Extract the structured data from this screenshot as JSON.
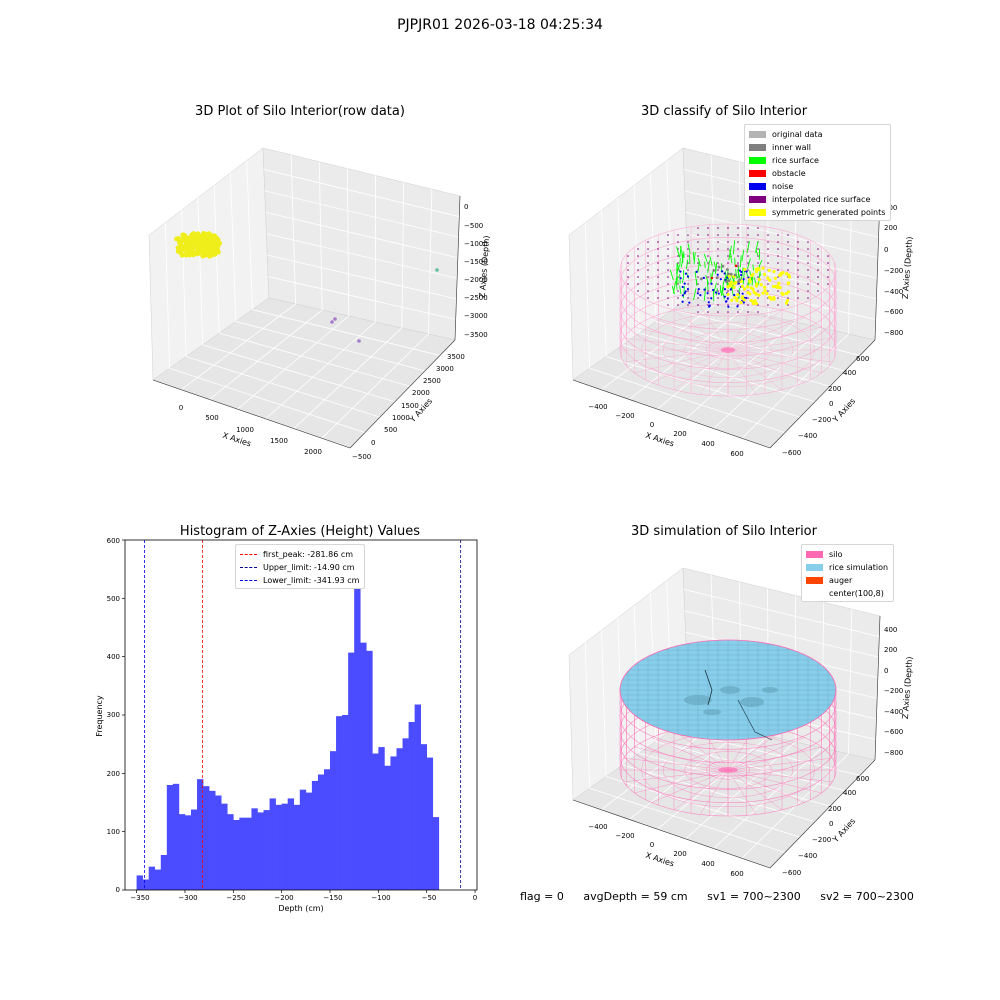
{
  "page": {
    "title": "PJPJR01 2026-03-18 04:25:34"
  },
  "footer": {
    "flag": "flag = 0",
    "avg_depth": "avgDepth = 59 cm",
    "sv1": "sv1 = 700~2300",
    "sv2": "sv2 = 700~2300"
  },
  "chart_data": [
    {
      "type": "scatter",
      "subtype": "3d",
      "title": "3D Plot of Silo Interior(row data)",
      "xlabel": "X Axies",
      "ylabel": "Y Axies",
      "zlabel": "Z Axies (Depth)",
      "x_ticks": [
        "0",
        "500",
        "1000",
        "1500",
        "2000"
      ],
      "y_ticks": [
        "−500",
        "0",
        "500",
        "1000",
        "1500",
        "2000",
        "2500",
        "3000",
        "3500"
      ],
      "z_ticks": [
        "0",
        "−500",
        "−1000",
        "−1500",
        "−2000",
        "−2500",
        "−3000",
        "−3500"
      ],
      "series": [
        {
          "color": "#f0ee1a",
          "description_points": "dense cluster near x=0, high y, z near 0"
        },
        {
          "color": "#a77ccc",
          "points": [
            [
              1700,
              -300,
              -3200
            ],
            [
              1900,
              -200,
              -3350
            ],
            [
              2100,
              -300,
              -3400
            ]
          ]
        },
        {
          "color": "#5dbf9d",
          "points": [
            [
              2200,
              3000,
              -1800
            ]
          ]
        }
      ],
      "grid": true
    },
    {
      "type": "scatter",
      "subtype": "3d",
      "title": "3D classify of Silo Interior",
      "xlabel": "X Axies",
      "ylabel": "Y Axies",
      "zlabel": "Z Axies (Depth)",
      "x_ticks": [
        "−400",
        "−200",
        "0",
        "200",
        "400",
        "600"
      ],
      "y_ticks": [
        "−600",
        "−400",
        "−200",
        "0",
        "200",
        "400",
        "600"
      ],
      "z_ticks": [
        "400",
        "200",
        "0",
        "−200",
        "−400",
        "−600",
        "−800"
      ],
      "legend": [
        {
          "label": "original data",
          "color": "#b3b3b3"
        },
        {
          "label": "inner wall",
          "color": "#7f7f7f"
        },
        {
          "label": "rice surface",
          "color": "#00ff00"
        },
        {
          "label": "obstacle",
          "color": "#ff0000"
        },
        {
          "label": "noise",
          "color": "#0000ee"
        },
        {
          "label": "interpolated rice surface",
          "color": "#800080"
        },
        {
          "label": "symmetric generated points",
          "color": "#ffff00"
        }
      ],
      "legend_position": "top-right",
      "grid": true
    },
    {
      "type": "bar",
      "subtype": "histogram",
      "title": "Histogram of Z-Axies (Height) Values",
      "xlabel": "Depth (cm)",
      "ylabel": "Frequency",
      "xlim": [
        -362,
        2
      ],
      "ylim": [
        0,
        600
      ],
      "x_ticks": [
        "−350",
        "−300",
        "−250",
        "−200",
        "−150",
        "−100",
        "−50",
        "0"
      ],
      "y_ticks": [
        "0",
        "100",
        "200",
        "300",
        "400",
        "500",
        "600"
      ],
      "bar_color": "#4b4bff",
      "bin_start": -350,
      "bin_width": 6.25,
      "values": [
        25,
        18,
        40,
        35,
        60,
        180,
        182,
        130,
        128,
        138,
        190,
        178,
        170,
        162,
        148,
        130,
        120,
        124,
        124,
        140,
        133,
        137,
        157,
        146,
        148,
        157,
        146,
        172,
        167,
        187,
        198,
        207,
        238,
        298,
        300,
        407,
        572,
        424,
        410,
        234,
        245,
        213,
        229,
        243,
        260,
        288,
        318,
        250,
        227,
        125
      ],
      "lines": [
        {
          "label": "first_peak: -281.86 cm",
          "x": -281.86,
          "color": "#ff0000"
        },
        {
          "label": "Upper_limit: -14.90 cm",
          "x": -14.9,
          "color": "#00008b"
        },
        {
          "label": "Lower_limit: -341.93 cm",
          "x": -341.93,
          "color": "#0000ee"
        }
      ],
      "legend_position": "top-center",
      "grid": false
    },
    {
      "type": "area",
      "subtype": "3d-surface",
      "title": "3D simulation of Silo Interior",
      "xlabel": "X Axies",
      "ylabel": "Y Axies",
      "zlabel": "Z Axies (Depth)",
      "x_ticks": [
        "−400",
        "−200",
        "0",
        "200",
        "400",
        "600"
      ],
      "y_ticks": [
        "−600",
        "−400",
        "−200",
        "0",
        "200",
        "400",
        "600"
      ],
      "z_ticks": [
        "400",
        "200",
        "0",
        "−200",
        "−400",
        "−600",
        "−800"
      ],
      "legend": [
        {
          "label": "silo",
          "color": "#ff69b4"
        },
        {
          "label": "rice simulation",
          "color": "#87ceeb"
        },
        {
          "label": "auger",
          "color": "#ff4500"
        },
        {
          "label": "center(100,8)",
          "color": "#ffffff"
        }
      ],
      "legend_position": "top-right",
      "grid": true
    }
  ]
}
